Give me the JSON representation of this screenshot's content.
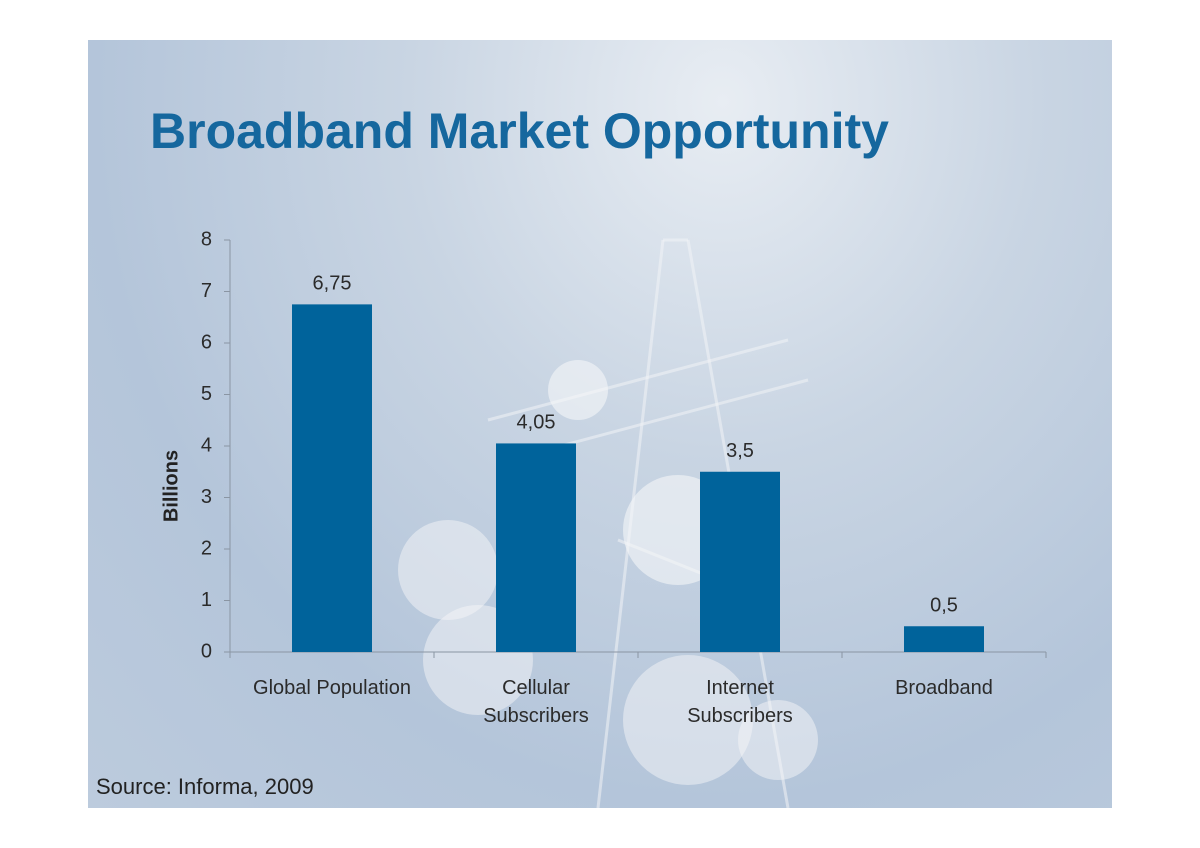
{
  "chart_data": {
    "type": "bar",
    "title": "Broadband Market Opportunity",
    "ylabel": "Billions",
    "categories": [
      "Global Population",
      "Cellular Subscribers",
      "Internet Subscribers",
      "Broadband"
    ],
    "values": [
      6.75,
      4.05,
      3.5,
      0.5
    ],
    "value_labels": [
      "6,75",
      "4,05",
      "3,5",
      "0,5"
    ],
    "color": "#00639b",
    "ylim": [
      0,
      8
    ],
    "yticks": [
      0,
      1,
      2,
      3,
      4,
      5,
      6,
      7,
      8
    ],
    "source": "Source: Informa, 2009"
  }
}
